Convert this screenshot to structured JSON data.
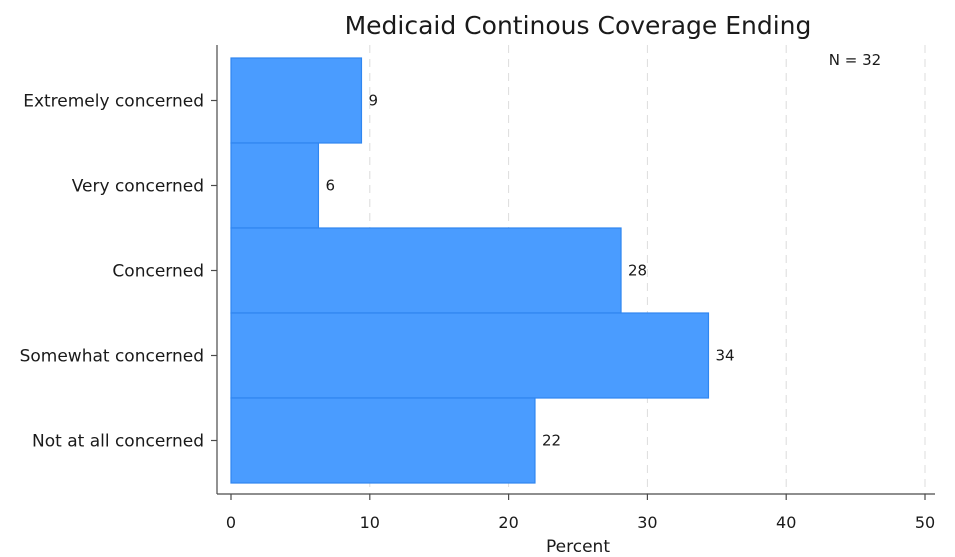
{
  "chart_data": {
    "type": "bar",
    "orientation": "horizontal",
    "title": "Medicaid Continous Coverage Ending",
    "annotation": "N = 32",
    "xlabel": "Percent",
    "ylabel": "",
    "categories": [
      "Extremely concerned",
      "Very concerned",
      "Concerned",
      "Somewhat concerned",
      "Not at all concerned"
    ],
    "values": [
      9.4,
      6.3,
      28.1,
      34.4,
      21.9
    ],
    "data_labels": [
      "9",
      "6",
      "28",
      "34",
      "22"
    ],
    "xlim": [
      0,
      50
    ],
    "xticks": [
      0,
      10,
      20,
      30,
      40,
      50
    ],
    "grid": true,
    "legend": "none",
    "bar_color": "#4a9cff",
    "bar_edge_color": "#2f86f0"
  }
}
